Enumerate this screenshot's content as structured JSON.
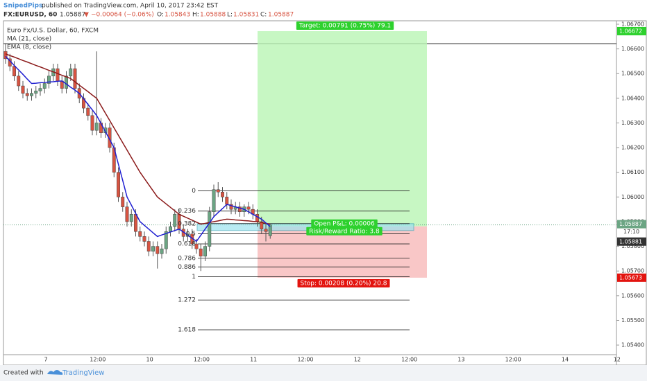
{
  "header": {
    "author": "SnipedPips",
    "published": "published on TradingView.com, April 10, 2017 23:42 EST",
    "symbol": "FX:EURUSD, 60",
    "last": "1.05887",
    "arrow": "▼",
    "change": "−0.00064 (−0.06%)",
    "o_label": "O:",
    "o": "1.05843",
    "h_label": "H:",
    "h": "1.05888",
    "l_label": "L:",
    "l": "1.05831",
    "c_label": "C:",
    "c": "1.05887"
  },
  "footer": {
    "created": "Created with",
    "brand": "TradingView"
  },
  "chart_data": {
    "type": "candlestick",
    "title": "Euro Fx/U.S. Dollar, 60, FXCM",
    "up_color": "#6ba583",
    "down_color": "#d75442",
    "open": [
      1.0659,
      1.0656,
      1.0653,
      1.0649,
      1.0645,
      1.0642,
      1.0641,
      1.0642,
      1.0643,
      1.0644,
      1.0646,
      1.0649,
      1.0652,
      1.0647,
      1.0644,
      1.0649,
      1.0652,
      1.0644,
      1.064,
      1.0636,
      1.0633,
      1.0627,
      1.063,
      1.0626,
      1.0628,
      1.062,
      1.061,
      1.06,
      1.0596,
      1.059,
      1.0593,
      1.0586,
      1.0584,
      1.0582,
      1.0578,
      1.058,
      1.0577,
      1.0579,
      1.0586,
      1.0588,
      1.0593,
      1.0587,
      1.0584,
      1.0585,
      1.0581,
      1.0579,
      1.0576,
      1.058,
      1.0594,
      1.0603,
      1.0602,
      1.06,
      1.0597,
      1.0595,
      1.0596,
      1.0594,
      1.0596,
      1.0595,
      1.0593,
      1.059,
      1.0587,
      1.05843
    ],
    "high": [
      1.0662,
      1.0658,
      1.0655,
      1.0651,
      1.0647,
      1.0644,
      1.0644,
      1.0645,
      1.0646,
      1.0648,
      1.0651,
      1.0654,
      1.0654,
      1.0649,
      1.0651,
      1.0654,
      1.0654,
      1.0646,
      1.0642,
      1.0638,
      1.0635,
      1.0659,
      1.0632,
      1.063,
      1.063,
      1.0622,
      1.0612,
      1.0602,
      1.0598,
      1.0595,
      1.0595,
      1.0588,
      1.0586,
      1.0584,
      1.0582,
      1.0582,
      1.0581,
      1.0588,
      1.059,
      1.0595,
      1.0595,
      1.0589,
      1.0587,
      1.0587,
      1.0583,
      1.0581,
      1.0582,
      1.0596,
      1.0605,
      1.0606,
      1.0604,
      1.0602,
      1.0599,
      1.0598,
      1.0598,
      1.0597,
      1.0598,
      1.0597,
      1.0595,
      1.0592,
      1.0589,
      1.05888
    ],
    "low": [
      1.0654,
      1.0651,
      1.0647,
      1.0643,
      1.064,
      1.0639,
      1.0639,
      1.064,
      1.0641,
      1.0642,
      1.0644,
      1.0647,
      1.0645,
      1.0642,
      1.0642,
      1.0647,
      1.0642,
      1.0638,
      1.0634,
      1.0631,
      1.0625,
      1.0625,
      1.0624,
      1.0624,
      1.0618,
      1.0608,
      1.0598,
      1.0594,
      1.0588,
      1.0588,
      1.0584,
      1.0582,
      1.058,
      1.0576,
      1.0576,
      1.0571,
      1.0575,
      1.0577,
      1.0584,
      1.0586,
      1.0585,
      1.0582,
      1.0582,
      1.0579,
      1.0577,
      1.057,
      1.0574,
      1.0578,
      1.0592,
      1.06,
      1.0598,
      1.0595,
      1.0593,
      1.0593,
      1.0592,
      1.0592,
      1.0593,
      1.0591,
      1.0588,
      1.0585,
      1.0582,
      1.05831
    ],
    "close": [
      1.0656,
      1.0653,
      1.0649,
      1.0645,
      1.0642,
      1.0641,
      1.0642,
      1.0643,
      1.0644,
      1.0646,
      1.0649,
      1.0652,
      1.0647,
      1.0644,
      1.0649,
      1.0652,
      1.0644,
      1.064,
      1.0636,
      1.0633,
      1.0627,
      1.063,
      1.0626,
      1.0628,
      1.062,
      1.061,
      1.06,
      1.0596,
      1.059,
      1.0593,
      1.0586,
      1.0584,
      1.0582,
      1.0578,
      1.058,
      1.0577,
      1.0579,
      1.0586,
      1.0588,
      1.0593,
      1.0587,
      1.0584,
      1.0585,
      1.0581,
      1.0579,
      1.0576,
      1.058,
      1.0594,
      1.0603,
      1.0602,
      1.06,
      1.0597,
      1.0595,
      1.0596,
      1.0594,
      1.0596,
      1.0595,
      1.0593,
      1.059,
      1.0587,
      1.0586,
      1.05887
    ],
    "series": [
      {
        "name": "MA (21, close)",
        "color": "#8b1a1a",
        "values": [
          1.0658,
          1.06573,
          1.06567,
          1.0656,
          1.06553,
          1.06547,
          1.0654,
          1.06533,
          1.06527,
          1.0652,
          1.06513,
          1.06507,
          1.065,
          1.06493,
          1.06487,
          1.0648,
          1.06467,
          1.06453,
          1.0644,
          1.06427,
          1.06413,
          1.064,
          1.0637,
          1.0634,
          1.0631,
          1.0628,
          1.0625,
          1.0622,
          1.0619,
          1.0616,
          1.0613,
          1.061,
          1.06075,
          1.0605,
          1.06025,
          1.06,
          1.05986,
          1.05972,
          1.05958,
          1.05944,
          1.0593,
          1.05922,
          1.05914,
          1.05906,
          1.05898,
          1.0589,
          1.05893,
          1.05897,
          1.059,
          1.05903,
          1.05907,
          1.0591,
          1.05909,
          1.05907,
          1.05906,
          1.05904,
          1.05903,
          1.05901,
          1.059,
          1.05897,
          1.05893,
          1.0589
        ]
      },
      {
        "name": "EMA (8, close)",
        "color": "#1f1fd1",
        "values": [
          1.0657,
          1.06552,
          1.06533,
          1.06515,
          1.06497,
          1.06478,
          1.0646,
          1.06461,
          1.06463,
          1.06464,
          1.06466,
          1.06467,
          1.06469,
          1.0647,
          1.06458,
          1.06445,
          1.06433,
          1.0642,
          1.06398,
          1.06375,
          1.06353,
          1.0633,
          1.06298,
          1.06265,
          1.06233,
          1.062,
          1.06133,
          1.06067,
          1.06,
          1.05967,
          1.05933,
          1.059,
          1.05885,
          1.0587,
          1.05855,
          1.0584,
          1.05846,
          1.05852,
          1.05858,
          1.05864,
          1.0587,
          1.05858,
          1.05845,
          1.05833,
          1.0582,
          1.05845,
          1.0587,
          1.05895,
          1.0592,
          1.05937,
          1.05953,
          1.0597,
          1.05965,
          1.0596,
          1.05955,
          1.0595,
          1.0594,
          1.0593,
          1.0592,
          1.0591,
          1.05895,
          1.0588
        ]
      }
    ],
    "ylim": [
      1.05361,
      1.06714
    ],
    "yticks": [
      {
        "value": 1.067,
        "label": "1.06700"
      },
      {
        "value": 1.066,
        "label": "1.06600"
      },
      {
        "value": 1.065,
        "label": "1.06500"
      },
      {
        "value": 1.064,
        "label": "1.06400"
      },
      {
        "value": 1.063,
        "label": "1.06300"
      },
      {
        "value": 1.062,
        "label": "1.06200"
      },
      {
        "value": 1.061,
        "label": "1.06100"
      },
      {
        "value": 1.06,
        "label": "1.06000"
      },
      {
        "value": 1.059,
        "label": "1.05900"
      },
      {
        "value": 1.058,
        "label": "1.05800"
      },
      {
        "value": 1.057,
        "label": "1.05700"
      },
      {
        "value": 1.056,
        "label": "1.05600"
      },
      {
        "value": 1.055,
        "label": "1.05500"
      },
      {
        "value": 1.054,
        "label": "1.05400"
      }
    ],
    "xtick_labels": [
      "7",
      "12:00",
      "10",
      "12:00",
      "11",
      "12:00",
      "12",
      "12:00",
      "13",
      "12:00",
      "14",
      "12"
    ],
    "fib": {
      "levels": [
        0,
        0.236,
        0.382,
        0.5,
        0.618,
        0.786,
        0.886,
        1,
        1.272,
        1.618
      ],
      "prices": [
        1.06025,
        1.05677
      ]
    },
    "position": {
      "target": {
        "value": 1.06672,
        "label": "1.06672"
      },
      "entry": {
        "value": 1.05881,
        "label": "1.05881"
      },
      "stop": {
        "value": 1.05673,
        "label": "1.05673"
      },
      "last": {
        "value": 1.05887,
        "label": "1.05887"
      },
      "countdown": "17:10",
      "target_text": "Target: 0.00791 (0.75%) 79.1",
      "stop_text": "Stop: 0.00208 (0.20%) 20.8",
      "pnl_text": "Open P&L: 0.00006",
      "rr_text": "Risk/Reward Ratio: 3.8"
    }
  }
}
